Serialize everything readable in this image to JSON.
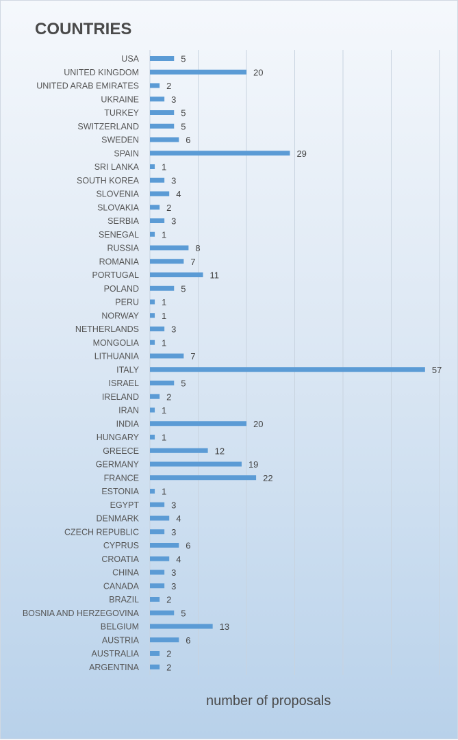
{
  "chart_data": {
    "type": "bar",
    "orientation": "horizontal",
    "title": "COUNTRIES",
    "xlabel": "number of proposals",
    "ylabel": "",
    "xlim": [
      0,
      60
    ],
    "grid": true,
    "legend": "none",
    "bar_color": "#5b9bd5",
    "categories": [
      "USA",
      "UNITED KINGDOM",
      "UNITED ARAB EMIRATES",
      "UKRAINE",
      "TURKEY",
      "SWITZERLAND",
      "SWEDEN",
      "SPAIN",
      "SRI LANKA",
      "SOUTH KOREA",
      "SLOVENIA",
      "SLOVAKIA",
      "SERBIA",
      "SENEGAL",
      "RUSSIA",
      "ROMANIA",
      "PORTUGAL",
      "POLAND",
      "PERU",
      "NORWAY",
      "NETHERLANDS",
      "MONGOLIA",
      "LITHUANIA",
      "ITALY",
      "ISRAEL",
      "IRELAND",
      "IRAN",
      "INDIA",
      "HUNGARY",
      "GREECE",
      "GERMANY",
      "FRANCE",
      "ESTONIA",
      "EGYPT",
      "DENMARK",
      "CZECH REPUBLIC",
      "CYPRUS",
      "CROATIA",
      "CHINA",
      "CANADA",
      "BRAZIL",
      "BOSNIA AND HERZEGOVINA",
      "BELGIUM",
      "AUSTRIA",
      "AUSTRALIA",
      "ARGENTINA"
    ],
    "values": [
      5,
      20,
      2,
      3,
      5,
      5,
      6,
      29,
      1,
      3,
      4,
      2,
      3,
      1,
      8,
      7,
      11,
      5,
      1,
      1,
      3,
      1,
      7,
      57,
      5,
      2,
      1,
      20,
      1,
      12,
      19,
      22,
      1,
      3,
      4,
      3,
      6,
      4,
      3,
      3,
      2,
      5,
      13,
      6,
      2,
      2
    ]
  }
}
